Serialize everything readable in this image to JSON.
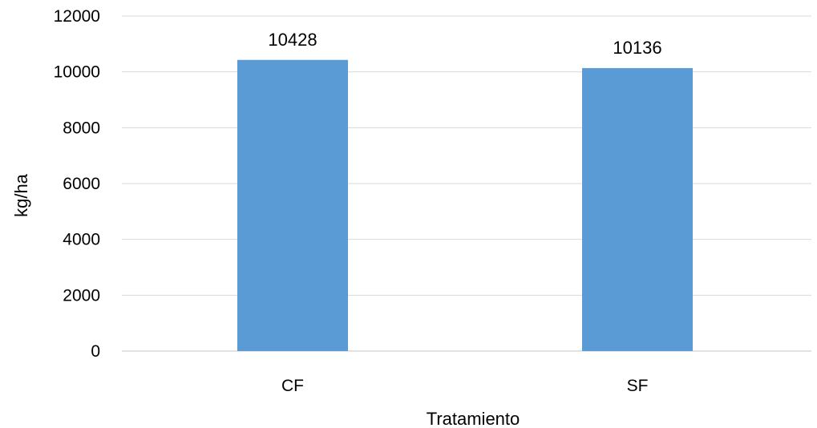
{
  "chart_data": {
    "type": "bar",
    "categories": [
      "CF",
      "SF"
    ],
    "values": [
      10428,
      10136
    ],
    "data_labels": [
      "10428",
      "10136"
    ],
    "xlabel": "Tratamiento",
    "ylabel": "kg/ha",
    "ylim": [
      0,
      12000
    ],
    "yticks": [
      0,
      2000,
      4000,
      6000,
      8000,
      10000,
      12000
    ],
    "ytick_labels": [
      "0",
      "2000",
      "4000",
      "6000",
      "8000",
      "10000",
      "12000"
    ],
    "grid": true,
    "legend": "none",
    "bar_color": "#5b9bd5",
    "grid_color": "#d9d9d9"
  }
}
